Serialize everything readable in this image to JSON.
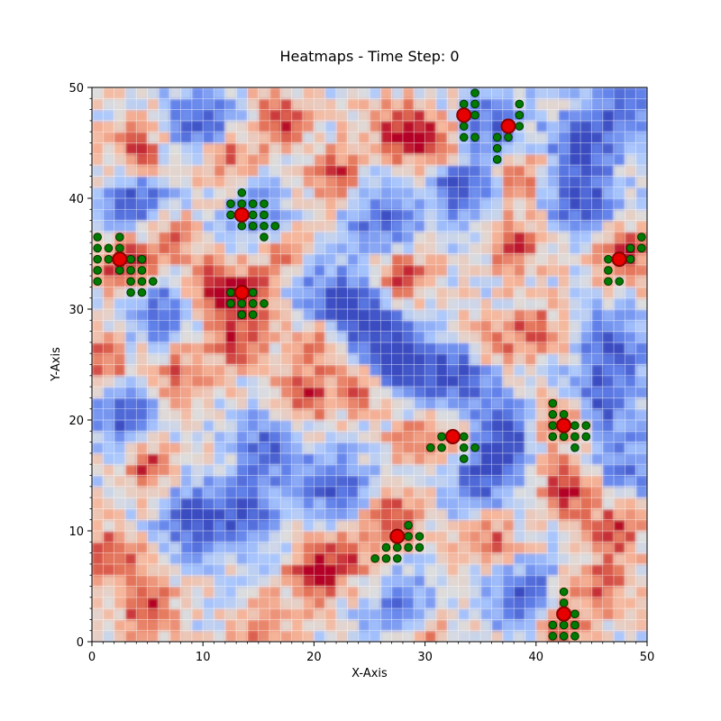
{
  "chart_data": {
    "type": "heatmap",
    "title": "Heatmaps - Time Step: 0",
    "xlabel": "X-Axis",
    "ylabel": "Y-Axis",
    "xlim": [
      0,
      50
    ],
    "ylim": [
      0,
      50
    ],
    "xticks": [
      0,
      10,
      20,
      30,
      40,
      50
    ],
    "yticks": [
      0,
      10,
      20,
      30,
      40,
      50
    ],
    "grid_size": 50,
    "colormap": "coolwarm",
    "colors": {
      "cold": "#3b4cc0",
      "neutral": "#dddddd",
      "hot": "#b40426",
      "agent": "#e60000",
      "agent_edge": "#8b0000",
      "trail": "#007a00",
      "trail_edge": "#003300",
      "grid": "#ffffff"
    },
    "hot_spots": [
      {
        "x": 3,
        "y": 34,
        "v": 1.0
      },
      {
        "x": 11,
        "y": 32,
        "v": 0.9
      },
      {
        "x": 14,
        "y": 31,
        "v": 0.8
      },
      {
        "x": 13,
        "y": 27,
        "v": 0.7
      },
      {
        "x": 4,
        "y": 44,
        "v": 0.8
      },
      {
        "x": 12,
        "y": 44,
        "v": 0.7
      },
      {
        "x": 17,
        "y": 47,
        "v": 0.8
      },
      {
        "x": 22,
        "y": 42,
        "v": 0.7
      },
      {
        "x": 28,
        "y": 46,
        "v": 0.9
      },
      {
        "x": 31,
        "y": 45,
        "v": 0.7
      },
      {
        "x": 28,
        "y": 33,
        "v": 0.8
      },
      {
        "x": 38,
        "y": 36,
        "v": 0.7
      },
      {
        "x": 39,
        "y": 42,
        "v": 0.6
      },
      {
        "x": 48,
        "y": 35,
        "v": 0.8
      },
      {
        "x": 20,
        "y": 27,
        "v": 0.7
      },
      {
        "x": 19,
        "y": 22,
        "v": 0.8
      },
      {
        "x": 24,
        "y": 23,
        "v": 0.6
      },
      {
        "x": 5,
        "y": 16,
        "v": 0.8
      },
      {
        "x": 1,
        "y": 25,
        "v": 0.7
      },
      {
        "x": 8,
        "y": 24,
        "v": 0.6
      },
      {
        "x": 42,
        "y": 20,
        "v": 0.8
      },
      {
        "x": 43,
        "y": 14,
        "v": 0.9
      },
      {
        "x": 47,
        "y": 10,
        "v": 0.8
      },
      {
        "x": 36,
        "y": 9,
        "v": 0.6
      },
      {
        "x": 27,
        "y": 11,
        "v": 0.8
      },
      {
        "x": 20,
        "y": 6,
        "v": 0.9
      },
      {
        "x": 23,
        "y": 8,
        "v": 0.6
      },
      {
        "x": 2,
        "y": 8,
        "v": 0.8
      },
      {
        "x": 5,
        "y": 3,
        "v": 0.8
      },
      {
        "x": 15,
        "y": 1,
        "v": 0.6
      },
      {
        "x": 42,
        "y": 2,
        "v": 0.8
      },
      {
        "x": 40,
        "y": 28,
        "v": 0.6
      },
      {
        "x": 36,
        "y": 27,
        "v": 0.5
      },
      {
        "x": 29,
        "y": 18,
        "v": 0.5
      },
      {
        "x": 33,
        "y": 18,
        "v": 0.5
      },
      {
        "x": 46,
        "y": 5,
        "v": 0.6
      },
      {
        "x": 30,
        "y": 0,
        "v": 0.6
      },
      {
        "x": 17,
        "y": 35,
        "v": 0.6
      },
      {
        "x": 7,
        "y": 36,
        "v": 0.6
      }
    ],
    "cold_spots": [
      {
        "x": 10,
        "y": 47,
        "v": 0.9
      },
      {
        "x": 4,
        "y": 40,
        "v": 0.8
      },
      {
        "x": 9,
        "y": 11,
        "v": 0.9
      },
      {
        "x": 14,
        "y": 12,
        "v": 0.8
      },
      {
        "x": 28,
        "y": 25,
        "v": 1.0
      },
      {
        "x": 25,
        "y": 29,
        "v": 0.9
      },
      {
        "x": 33,
        "y": 24,
        "v": 0.8
      },
      {
        "x": 37,
        "y": 19,
        "v": 0.9
      },
      {
        "x": 46,
        "y": 22,
        "v": 0.8
      },
      {
        "x": 47,
        "y": 27,
        "v": 0.8
      },
      {
        "x": 44,
        "y": 40,
        "v": 0.9
      },
      {
        "x": 44,
        "y": 45,
        "v": 0.8
      },
      {
        "x": 39,
        "y": 4,
        "v": 0.9
      },
      {
        "x": 35,
        "y": 15,
        "v": 0.8
      },
      {
        "x": 16,
        "y": 18,
        "v": 0.7
      },
      {
        "x": 3,
        "y": 20,
        "v": 0.8
      },
      {
        "x": 21,
        "y": 31,
        "v": 0.7
      },
      {
        "x": 33,
        "y": 41,
        "v": 0.8
      },
      {
        "x": 26,
        "y": 38,
        "v": 0.7
      },
      {
        "x": 22,
        "y": 14,
        "v": 0.8
      },
      {
        "x": 28,
        "y": 3,
        "v": 0.7
      },
      {
        "x": 48,
        "y": 16,
        "v": 0.6
      },
      {
        "x": 6,
        "y": 30,
        "v": 0.7
      },
      {
        "x": 15,
        "y": 38,
        "v": 0.6
      },
      {
        "x": 48,
        "y": 48,
        "v": 0.7
      },
      {
        "x": 36,
        "y": 47,
        "v": 0.7
      }
    ],
    "agents": [
      {
        "x": 2.5,
        "y": 34.5,
        "trail": [
          [
            0.5,
            36.5
          ],
          [
            0.5,
            35.5
          ],
          [
            1.5,
            35.5
          ],
          [
            2.5,
            35.5
          ],
          [
            2.5,
            36.5
          ],
          [
            0.5,
            34.5
          ],
          [
            1.5,
            34.5
          ],
          [
            0.5,
            33.5
          ],
          [
            0.5,
            32.5
          ],
          [
            2.5,
            33.5
          ],
          [
            3.5,
            34.5
          ],
          [
            4.5,
            34.5
          ],
          [
            3.5,
            33.5
          ],
          [
            4.5,
            33.5
          ],
          [
            3.5,
            32.5
          ],
          [
            4.5,
            32.5
          ],
          [
            5.5,
            32.5
          ],
          [
            3.5,
            31.5
          ],
          [
            4.5,
            31.5
          ]
        ]
      },
      {
        "x": 13.5,
        "y": 38.5,
        "trail": [
          [
            13.5,
            40.5
          ],
          [
            12.5,
            39.5
          ],
          [
            13.5,
            39.5
          ],
          [
            14.5,
            39.5
          ],
          [
            15.5,
            39.5
          ],
          [
            12.5,
            38.5
          ],
          [
            14.5,
            38.5
          ],
          [
            15.5,
            38.5
          ],
          [
            13.5,
            37.5
          ],
          [
            14.5,
            37.5
          ],
          [
            15.5,
            37.5
          ],
          [
            16.5,
            37.5
          ],
          [
            15.5,
            36.5
          ]
        ]
      },
      {
        "x": 13.5,
        "y": 31.5,
        "trail": [
          [
            12.5,
            31.5
          ],
          [
            14.5,
            31.5
          ],
          [
            12.5,
            30.5
          ],
          [
            13.5,
            30.5
          ],
          [
            14.5,
            30.5
          ],
          [
            15.5,
            30.5
          ],
          [
            13.5,
            29.5
          ],
          [
            14.5,
            29.5
          ]
        ]
      },
      {
        "x": 33.5,
        "y": 47.5,
        "trail": [
          [
            34.5,
            49.5
          ],
          [
            33.5,
            48.5
          ],
          [
            34.5,
            48.5
          ],
          [
            34.5,
            47.5
          ],
          [
            33.5,
            46.5
          ],
          [
            33.5,
            45.5
          ],
          [
            34.5,
            45.5
          ]
        ]
      },
      {
        "x": 37.5,
        "y": 46.5,
        "trail": [
          [
            38.5,
            48.5
          ],
          [
            38.5,
            47.5
          ],
          [
            38.5,
            46.5
          ],
          [
            36.5,
            45.5
          ],
          [
            37.5,
            45.5
          ],
          [
            36.5,
            44.5
          ],
          [
            36.5,
            43.5
          ]
        ]
      },
      {
        "x": 47.5,
        "y": 34.5,
        "trail": [
          [
            49.5,
            36.5
          ],
          [
            48.5,
            35.5
          ],
          [
            49.5,
            35.5
          ],
          [
            46.5,
            34.5
          ],
          [
            48.5,
            34.5
          ],
          [
            46.5,
            33.5
          ],
          [
            46.5,
            32.5
          ],
          [
            47.5,
            32.5
          ]
        ]
      },
      {
        "x": 32.5,
        "y": 18.5,
        "trail": [
          [
            31.5,
            18.5
          ],
          [
            33.5,
            18.5
          ],
          [
            30.5,
            17.5
          ],
          [
            31.5,
            17.5
          ],
          [
            33.5,
            17.5
          ],
          [
            34.5,
            17.5
          ],
          [
            33.5,
            16.5
          ]
        ]
      },
      {
        "x": 42.5,
        "y": 19.5,
        "trail": [
          [
            41.5,
            21.5
          ],
          [
            41.5,
            20.5
          ],
          [
            42.5,
            20.5
          ],
          [
            41.5,
            19.5
          ],
          [
            43.5,
            19.5
          ],
          [
            44.5,
            19.5
          ],
          [
            41.5,
            18.5
          ],
          [
            42.5,
            18.5
          ],
          [
            43.5,
            18.5
          ],
          [
            44.5,
            18.5
          ],
          [
            43.5,
            17.5
          ]
        ]
      },
      {
        "x": 27.5,
        "y": 9.5,
        "trail": [
          [
            28.5,
            10.5
          ],
          [
            28.5,
            9.5
          ],
          [
            29.5,
            9.5
          ],
          [
            26.5,
            8.5
          ],
          [
            27.5,
            8.5
          ],
          [
            28.5,
            8.5
          ],
          [
            29.5,
            8.5
          ],
          [
            25.5,
            7.5
          ],
          [
            26.5,
            7.5
          ],
          [
            27.5,
            7.5
          ]
        ]
      },
      {
        "x": 42.5,
        "y": 2.5,
        "trail": [
          [
            42.5,
            4.5
          ],
          [
            42.5,
            3.5
          ],
          [
            43.5,
            2.5
          ],
          [
            41.5,
            1.5
          ],
          [
            42.5,
            1.5
          ],
          [
            43.5,
            1.5
          ],
          [
            41.5,
            0.5
          ],
          [
            42.5,
            0.5
          ],
          [
            43.5,
            0.5
          ]
        ]
      }
    ]
  }
}
